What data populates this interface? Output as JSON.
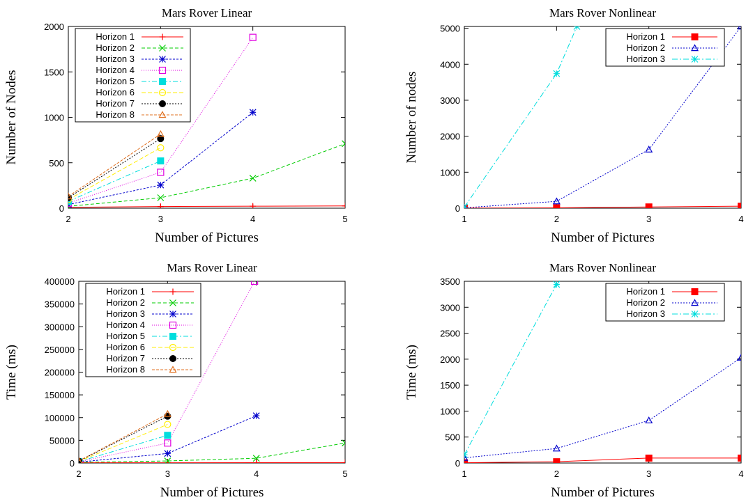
{
  "chart_data": [
    {
      "type": "line",
      "title": "Mars Rover Linear",
      "xlabel": "Number of Pictures",
      "ylabel": "Number of Nodes",
      "xlim": [
        2,
        5
      ],
      "ylim": [
        0,
        2000
      ],
      "xticks": [
        2,
        3,
        4,
        5
      ],
      "yticks": [
        0,
        500,
        1000,
        1500,
        2000
      ],
      "legend_position": "top-left",
      "series": [
        {
          "name": "Horizon 1",
          "color": "#ff0000",
          "marker": "plus",
          "dash": "",
          "x": [
            2,
            3,
            4,
            5
          ],
          "y": [
            10,
            18,
            22,
            25
          ]
        },
        {
          "name": "Horizon 2",
          "color": "#00cc00",
          "marker": "cross",
          "dash": "5,3",
          "x": [
            2,
            3,
            4,
            5
          ],
          "y": [
            20,
            115,
            330,
            710
          ]
        },
        {
          "name": "Horizon 3",
          "color": "#0000cc",
          "marker": "asterisk",
          "dash": "3,2",
          "x": [
            2,
            3,
            4
          ],
          "y": [
            40,
            255,
            1055
          ]
        },
        {
          "name": "Horizon 4",
          "color": "#e000e0",
          "marker": "square-open",
          "dash": "1,2",
          "x": [
            2,
            3,
            4
          ],
          "y": [
            55,
            395,
            1880
          ]
        },
        {
          "name": "Horizon 5",
          "color": "#00dddd",
          "marker": "square-filled",
          "dash": "7,3,2,3",
          "x": [
            2,
            3
          ],
          "y": [
            75,
            520
          ]
        },
        {
          "name": "Horizon 6",
          "color": "#ffee00",
          "marker": "circle-open",
          "dash": "6,3",
          "x": [
            2,
            3
          ],
          "y": [
            95,
            665
          ]
        },
        {
          "name": "Horizon 7",
          "color": "#000000",
          "marker": "circle-filled",
          "dash": "2,2",
          "x": [
            2,
            3
          ],
          "y": [
            115,
            765
          ]
        },
        {
          "name": "Horizon 8",
          "color": "#e07020",
          "marker": "triangle-open",
          "dash": "4,2",
          "x": [
            2,
            3
          ],
          "y": [
            130,
            815
          ]
        }
      ]
    },
    {
      "type": "line",
      "title": "Mars Rover Nonlinear",
      "xlabel": "Number of Pictures",
      "ylabel": "Number of nodes",
      "xlim": [
        1,
        4
      ],
      "ylim": [
        0,
        5050
      ],
      "xticks": [
        1,
        2,
        3,
        4
      ],
      "yticks": [
        0,
        1000,
        2000,
        3000,
        4000,
        5000
      ],
      "legend_position": "top-right",
      "series": [
        {
          "name": "Horizon 1",
          "color": "#ff0000",
          "marker": "square-filled",
          "dash": "",
          "x": [
            1,
            2,
            3,
            4
          ],
          "y": [
            2,
            10,
            35,
            55
          ]
        },
        {
          "name": "Horizon 2",
          "color": "#0000cc",
          "marker": "triangle-open",
          "dash": "2,2",
          "x": [
            1,
            2,
            3,
            4
          ],
          "y": [
            10,
            190,
            1630,
            5050
          ]
        },
        {
          "name": "Horizon 3",
          "color": "#00dddd",
          "marker": "asterisk",
          "dash": "8,3,2,3",
          "x": [
            1,
            2,
            2.22
          ],
          "y": [
            30,
            3740,
            5050
          ]
        }
      ]
    },
    {
      "type": "line",
      "title": "Mars Rover Linear",
      "xlabel": "Number of Pictures",
      "ylabel": "Time (ms)",
      "xlim": [
        2,
        5
      ],
      "ylim": [
        0,
        400000
      ],
      "xticks": [
        2,
        3,
        4,
        5
      ],
      "yticks": [
        0,
        50000,
        100000,
        150000,
        200000,
        250000,
        300000,
        350000,
        400000
      ],
      "legend_position": "top-left",
      "series": [
        {
          "name": "Horizon 1",
          "color": "#ff0000",
          "marker": "plus",
          "dash": "",
          "x": [
            2,
            3,
            4,
            5
          ],
          "y": [
            500,
            600,
            700,
            800
          ]
        },
        {
          "name": "Horizon 2",
          "color": "#00cc00",
          "marker": "cross",
          "dash": "5,3",
          "x": [
            2,
            3,
            4,
            5
          ],
          "y": [
            1500,
            4500,
            10500,
            44000
          ]
        },
        {
          "name": "Horizon 3",
          "color": "#0000cc",
          "marker": "asterisk",
          "dash": "3,2",
          "x": [
            2,
            3,
            4
          ],
          "y": [
            2000,
            21000,
            104000
          ]
        },
        {
          "name": "Horizon 4",
          "color": "#e000e0",
          "marker": "square-open",
          "dash": "1,2",
          "x": [
            2,
            3,
            3.98
          ],
          "y": [
            2500,
            44000,
            400000
          ]
        },
        {
          "name": "Horizon 5",
          "color": "#00dddd",
          "marker": "square-filled",
          "dash": "7,3,2,3",
          "x": [
            2,
            3
          ],
          "y": [
            3000,
            61000
          ]
        },
        {
          "name": "Horizon 6",
          "color": "#ffee00",
          "marker": "circle-open",
          "dash": "6,3",
          "x": [
            2,
            3
          ],
          "y": [
            3500,
            85000
          ]
        },
        {
          "name": "Horizon 7",
          "color": "#000000",
          "marker": "circle-filled",
          "dash": "2,2",
          "x": [
            2,
            3
          ],
          "y": [
            4000,
            103000
          ]
        },
        {
          "name": "Horizon 8",
          "color": "#e07020",
          "marker": "triangle-open",
          "dash": "4,2",
          "x": [
            2,
            3
          ],
          "y": [
            4500,
            108000
          ]
        }
      ]
    },
    {
      "type": "line",
      "title": "Mars Rover Nonlinear",
      "xlabel": "Number of Pictures",
      "ylabel": "Time (ms)",
      "xlim": [
        1,
        4
      ],
      "ylim": [
        0,
        3500
      ],
      "xticks": [
        1,
        2,
        3,
        4
      ],
      "yticks": [
        0,
        500,
        1000,
        1500,
        2000,
        2500,
        3000,
        3500
      ],
      "legend_position": "top-right",
      "series": [
        {
          "name": "Horizon 1",
          "color": "#ff0000",
          "marker": "square-filled",
          "dash": "",
          "x": [
            1,
            2,
            3,
            4
          ],
          "y": [
            5,
            25,
            95,
            95
          ]
        },
        {
          "name": "Horizon 2",
          "color": "#0000cc",
          "marker": "triangle-open",
          "dash": "2,2",
          "x": [
            1,
            2,
            3,
            4
          ],
          "y": [
            100,
            280,
            820,
            2030
          ]
        },
        {
          "name": "Horizon 3",
          "color": "#00dddd",
          "marker": "asterisk",
          "dash": "8,3,2,3",
          "x": [
            1,
            2
          ],
          "y": [
            160,
            3440
          ]
        }
      ]
    }
  ]
}
